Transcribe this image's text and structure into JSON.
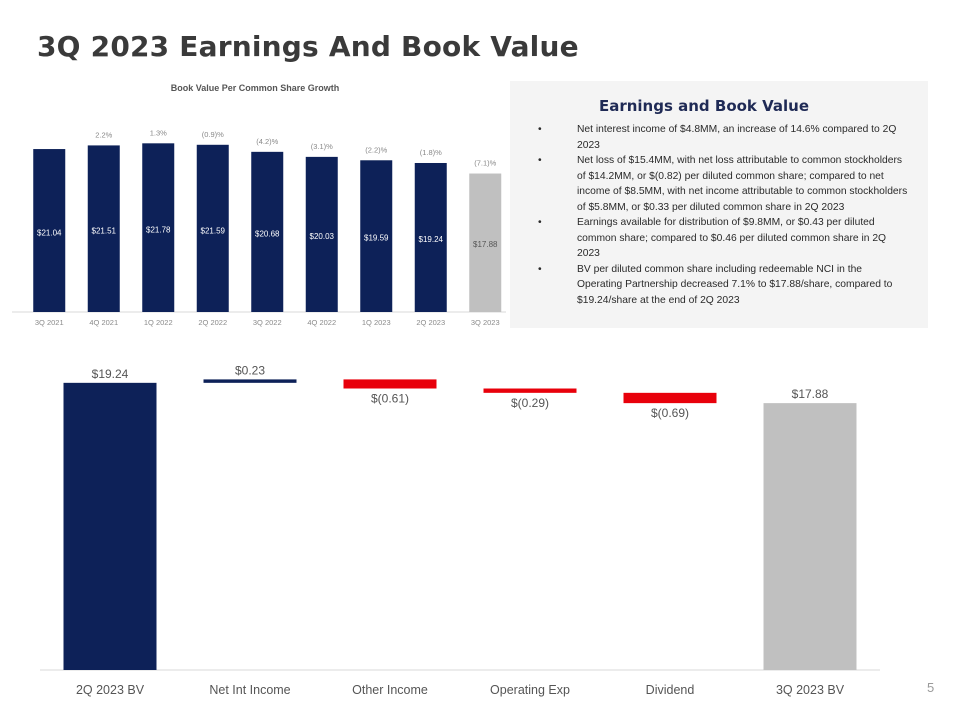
{
  "page": {
    "title": "3Q 2023 Earnings And Book Value",
    "page_number": "5"
  },
  "colors": {
    "navy": "#0d2158",
    "gray": "#c0c0c0",
    "red": "#e8000b",
    "panel_bg": "#f4f4f4"
  },
  "panel": {
    "title": "Earnings and Book Value",
    "bullets": [
      "Net interest income of $4.8MM, an increase of 14.6% compared to 2Q 2023",
      "Net loss of $15.4MM, with net loss attributable to common stockholders of $14.2MM, or $(0.82) per diluted common share; compared to net income of $8.5MM, with net income attributable to common stockholders of $5.8MM, or $0.33 per diluted common share in 2Q 2023",
      "Earnings available for distribution of $9.8MM, or $0.43 per diluted common share; compared to $0.46 per diluted common share in 2Q 2023",
      "BV per diluted common share including redeemable NCI in the Operating Partnership decreased 7.1% to $17.88/share, compared to $19.24/share at the end of 2Q 2023"
    ]
  },
  "chart_data": [
    {
      "type": "bar",
      "title": "Book Value Per Common Share Growth",
      "categories": [
        "3Q 2021",
        "4Q 2021",
        "1Q 2022",
        "2Q 2022",
        "3Q 2022",
        "4Q 2022",
        "1Q 2023",
        "2Q 2023",
        "3Q 2023"
      ],
      "values": [
        21.04,
        21.51,
        21.78,
        21.59,
        20.68,
        20.03,
        19.59,
        19.24,
        17.88
      ],
      "value_labels": [
        "$21.04",
        "$21.51",
        "$21.78",
        "$21.59",
        "$20.68",
        "$20.03",
        "$19.59",
        "$19.24",
        "$17.88"
      ],
      "growth_labels": [
        "",
        "2.2%",
        "1.3%",
        "(0.9)%",
        "(4.2)%",
        "(3.1)%",
        "(2.2)%",
        "(1.8)%",
        "(7.1)%"
      ],
      "bar_colors": [
        "#0d2158",
        "#0d2158",
        "#0d2158",
        "#0d2158",
        "#0d2158",
        "#0d2158",
        "#0d2158",
        "#0d2158",
        "#c0c0c0"
      ],
      "ylim": [
        0,
        23.5
      ],
      "grid": false,
      "xlabel": "",
      "ylabel": ""
    },
    {
      "type": "bar",
      "subtype": "waterfall",
      "title": "",
      "categories": [
        "2Q 2023 BV",
        "Net Int Income",
        "Other Income",
        "Operating Exp",
        "Dividend",
        "3Q 2023 BV"
      ],
      "values": [
        19.24,
        0.23,
        -0.61,
        -0.29,
        -0.69,
        17.88
      ],
      "kinds": [
        "total",
        "delta",
        "delta",
        "delta",
        "delta",
        "total"
      ],
      "value_labels": [
        "$19.24",
        "$0.23",
        "$(0.61)",
        "$(0.29)",
        "$(0.69)",
        "$17.88"
      ],
      "bar_colors": [
        "#0d2158",
        "#0d2158",
        "#e8000b",
        "#e8000b",
        "#e8000b",
        "#c0c0c0"
      ],
      "ylim": [
        0,
        20.1
      ],
      "grid": false,
      "xlabel": "",
      "ylabel": ""
    }
  ]
}
